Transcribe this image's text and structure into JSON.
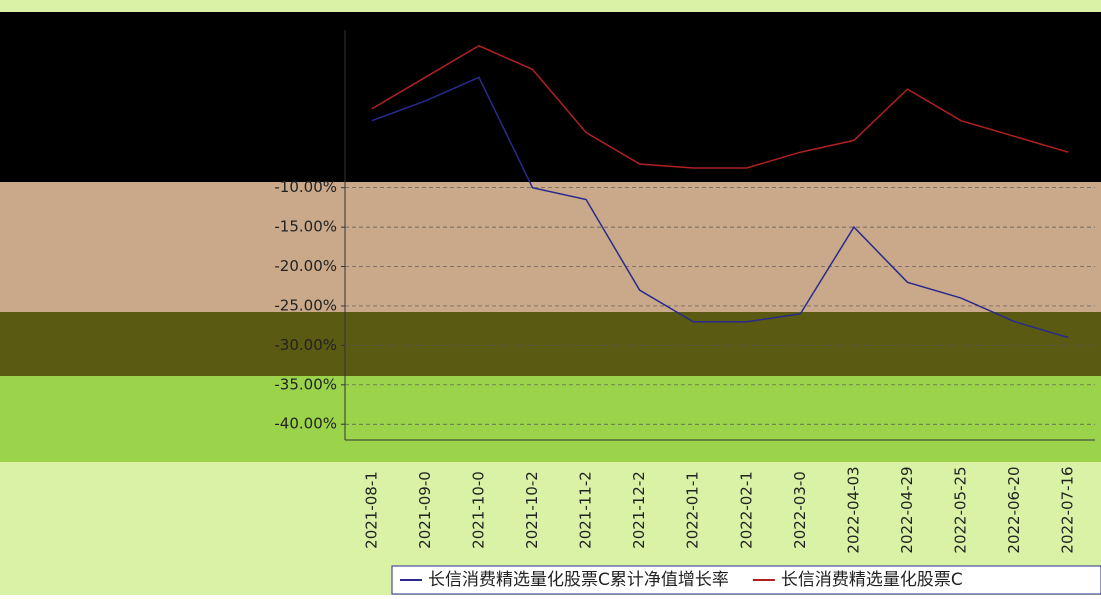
{
  "chart_data": {
    "type": "line",
    "categories": [
      "2021-08-1",
      "2021-09-0",
      "2021-10-0",
      "2021-10-2",
      "2021-11-2",
      "2021-12-2",
      "2022-01-1",
      "2022-02-1",
      "2022-03-0",
      "2022-04-03",
      "2022-04-29",
      "2022-05-25",
      "2022-06-20",
      "2022-07-16"
    ],
    "series": [
      {
        "name": "长信消费精选量化股票C累计净值增长率",
        "color": "#2a2a8c",
        "values": [
          -1.5,
          1,
          4,
          -10,
          -11.5,
          -23,
          -27,
          -27,
          -26,
          -15,
          -22,
          -24,
          -27,
          -29
        ]
      },
      {
        "name": "长信消费精选量化股票C",
        "color": "#b02020",
        "values": [
          0,
          4,
          8,
          5,
          -3,
          -7,
          -7.5,
          -7.5,
          -5.5,
          -4,
          2.5,
          -1.5,
          -3.5,
          -5.5
        ]
      }
    ],
    "ylim": [
      -42,
      10
    ],
    "yticks": [
      {
        "value": -10,
        "label": "-10.00%"
      },
      {
        "value": -15,
        "label": "-15.00%"
      },
      {
        "value": -20,
        "label": "-20.00%"
      },
      {
        "value": -25,
        "label": "-25.00%"
      },
      {
        "value": -30,
        "label": "-30.00%"
      },
      {
        "value": -35,
        "label": "-35.00%"
      },
      {
        "value": -40,
        "label": "-40.00%"
      }
    ],
    "grid": true
  }
}
